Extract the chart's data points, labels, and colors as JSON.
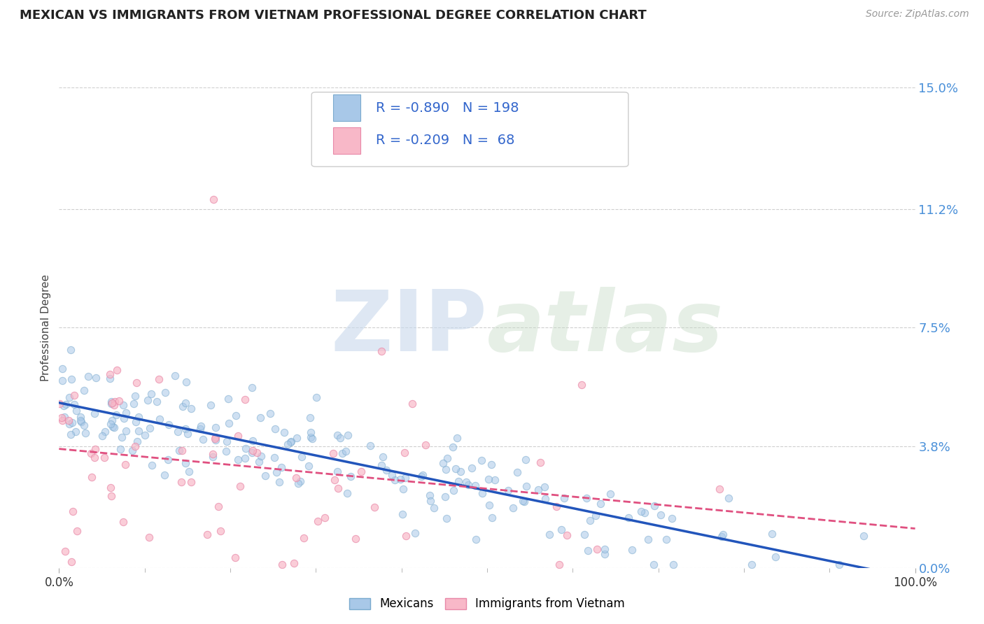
{
  "title": "MEXICAN VS IMMIGRANTS FROM VIETNAM PROFESSIONAL DEGREE CORRELATION CHART",
  "source_text": "Source: ZipAtlas.com",
  "xlabel": "",
  "ylabel": "Professional Degree",
  "xlim": [
    0.0,
    1.0
  ],
  "ylim": [
    0.0,
    0.15
  ],
  "ytick_labels": [
    "0.0%",
    "3.8%",
    "7.5%",
    "11.2%",
    "15.0%"
  ],
  "ytick_values": [
    0.0,
    0.038,
    0.075,
    0.112,
    0.15
  ],
  "xtick_labels": [
    "0.0%",
    "100.0%"
  ],
  "xtick_values": [
    0.0,
    1.0
  ],
  "series_mexicans": {
    "color": "#a8c8e8",
    "edge_color": "#7aaace",
    "trend_color": "#2255bb",
    "trend_style": "-",
    "trend_lw": 2.5,
    "R": -0.89,
    "N": 198
  },
  "series_vietnam": {
    "color": "#f8b8c8",
    "edge_color": "#e888a8",
    "trend_color": "#e05080",
    "trend_style": "--",
    "trend_lw": 2.0,
    "R": -0.209,
    "N": 68
  },
  "legend_R_color": "#3366cc",
  "legend_N_color": "#222244",
  "background_color": "#ffffff",
  "grid_color": "#bbbbbb",
  "title_color": "#222222",
  "axis_label_color": "#444444",
  "right_label_color": "#4a90d9",
  "source_color": "#999999",
  "scatter_alpha": 0.55,
  "scatter_size": 55,
  "random_seed": 42
}
